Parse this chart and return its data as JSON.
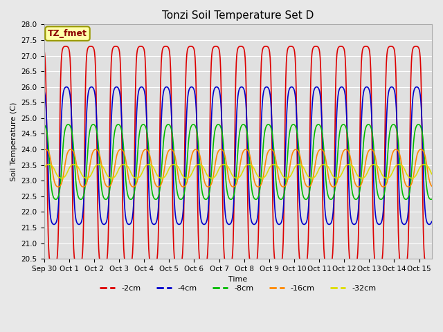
{
  "title": "Tonzi Soil Temperature Set D",
  "xlabel": "Time",
  "ylabel": "Soil Temperature (C)",
  "ylim": [
    20.5,
    28.0
  ],
  "yticks": [
    20.5,
    21.0,
    21.5,
    22.0,
    22.5,
    23.0,
    23.5,
    24.0,
    24.5,
    25.0,
    25.5,
    26.0,
    26.5,
    27.0,
    27.5,
    28.0
  ],
  "n_days": 15.5,
  "series": [
    {
      "label": "-2cm",
      "color": "#dd0000",
      "mean": 23.8,
      "amplitude": 3.5,
      "phase_shift": 0.62,
      "sharpness": 3.0,
      "linewidth": 1.2
    },
    {
      "label": "-4cm",
      "color": "#0000cc",
      "mean": 23.8,
      "amplitude": 2.2,
      "phase_shift": 0.65,
      "sharpness": 2.0,
      "linewidth": 1.2
    },
    {
      "label": "-8cm",
      "color": "#00bb00",
      "mean": 23.6,
      "amplitude": 1.2,
      "phase_shift": 0.72,
      "sharpness": 1.5,
      "linewidth": 1.2
    },
    {
      "label": "-16cm",
      "color": "#ff8800",
      "mean": 23.4,
      "amplitude": 0.6,
      "phase_shift": 0.82,
      "sharpness": 1.2,
      "linewidth": 1.2
    },
    {
      "label": "-32cm",
      "color": "#dddd00",
      "mean": 23.3,
      "amplitude": 0.22,
      "phase_shift": 0.95,
      "sharpness": 1.0,
      "linewidth": 1.2
    }
  ],
  "xtick_labels": [
    "Sep 30",
    "Oct 1",
    "Oct 2",
    "Oct 3",
    "Oct 4",
    "Oct 5",
    "Oct 6",
    "Oct 7",
    "Oct 8",
    "Oct 9",
    "Oct 10",
    "Oct 11",
    "Oct 12",
    "Oct 13",
    "Oct 14",
    "Oct 15"
  ],
  "legend_label": "TZ_fmet",
  "fig_facecolor": "#e8e8e8",
  "plot_facecolor": "#e0e0e0",
  "grid_color": "#ffffff",
  "title_fontsize": 11,
  "axis_label_fontsize": 8,
  "tick_fontsize": 7.5,
  "legend_fontsize": 8
}
